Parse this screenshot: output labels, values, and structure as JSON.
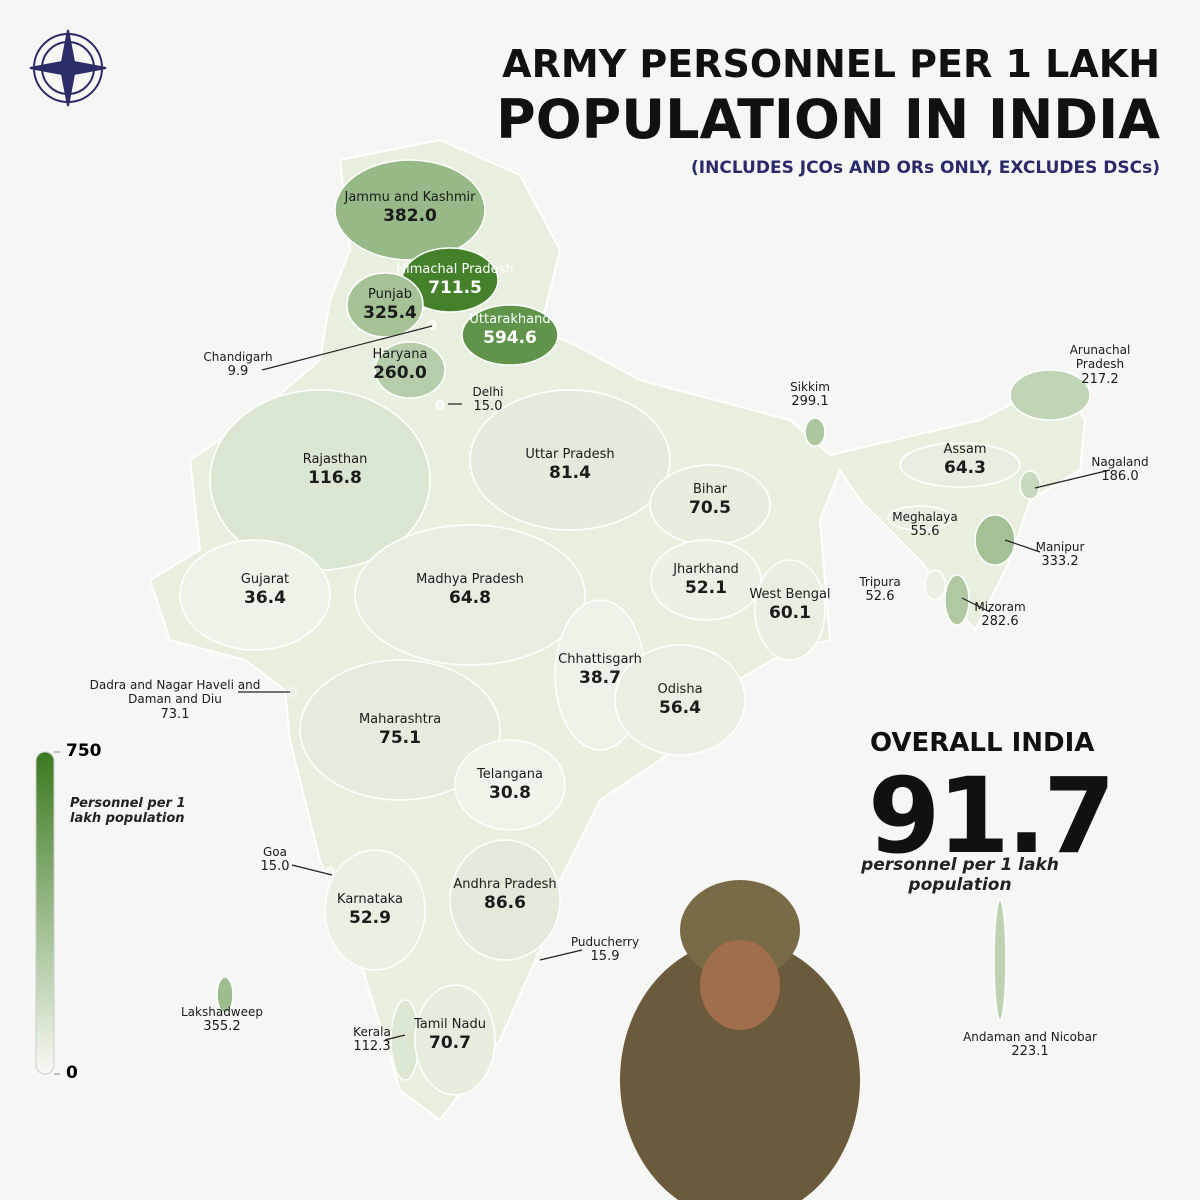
{
  "chart_data": {
    "type": "choropleth",
    "title_line1": "ARMY PERSONNEL PER 1 LAKH",
    "title_line2": "POPULATION IN INDIA",
    "subtitle": "(INCLUDES JCOs AND ORs ONLY, EXCLUDES DSCs)",
    "regions": [
      "Jammu and Kashmir",
      "Himachal Pradesh",
      "Punjab",
      "Uttarakhand",
      "Chandigarh",
      "Haryana",
      "Delhi",
      "Rajasthan",
      "Uttar Pradesh",
      "Bihar",
      "Sikkim",
      "Arunachal Pradesh",
      "Assam",
      "Nagaland",
      "Meghalaya",
      "Manipur",
      "Tripura",
      "Mizoram",
      "Gujarat",
      "Madhya Pradesh",
      "Jharkhand",
      "West Bengal",
      "Chhattisgarh",
      "Odisha",
      "Dadra and Nagar Haveli and Daman and Diu",
      "Maharashtra",
      "Telangana",
      "Goa",
      "Karnataka",
      "Andhra Pradesh",
      "Puducherry",
      "Lakshadweep",
      "Kerala",
      "Tamil Nadu",
      "Andaman and Nicobar"
    ],
    "values": [
      382,
      711.5,
      325.4,
      594.6,
      9.9,
      260,
      15,
      116.8,
      81.4,
      70.5,
      299.1,
      217.2,
      64.3,
      186,
      55.6,
      333.2,
      52.6,
      282.6,
      36.4,
      64.8,
      52.1,
      60.1,
      38.7,
      56.4,
      73.1,
      75.1,
      30.8,
      15,
      52.9,
      86.6,
      15.9,
      355.2,
      112.3,
      70.7,
      223.1
    ],
    "value_labels": [
      "382.0",
      "711.5",
      "325.4",
      "594.6",
      "9.9",
      "260.0",
      "15.0",
      "116.8",
      "81.4",
      "70.5",
      "299.1",
      "217.2",
      "64.3",
      "186.0",
      "55.6",
      "333.2",
      "52.6",
      "282.6",
      "36.4",
      "64.8",
      "52.1",
      "60.1",
      "38.7",
      "56.4",
      "73.1",
      "75.1",
      "30.8",
      "15.0",
      "52.9",
      "86.6",
      "15.9",
      "355.2",
      "112.3",
      "70.7",
      "223.1"
    ],
    "colorbar": {
      "range": [
        0,
        750
      ],
      "ticks": [
        0,
        750
      ],
      "caption": "Personnel per 1 lakh population",
      "low_color": "#f7f9f3",
      "high_color": "#3a7a1f"
    },
    "overall": {
      "heading": "OVERALL INDIA",
      "value": 91.7,
      "caption": "personnel per 1 lakh population"
    }
  }
}
